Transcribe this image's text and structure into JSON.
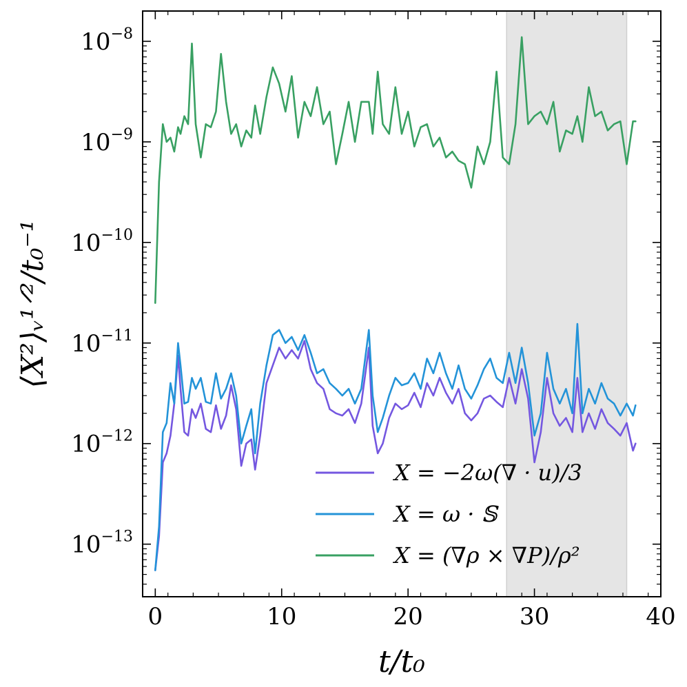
{
  "chart_data": {
    "type": "line",
    "title": "",
    "xlabel": "t/t₀",
    "ylabel": "⟨X²⟩ᵥ¹ᐟ²/t₀⁻¹",
    "xlim": [
      -1,
      40
    ],
    "ylim": [
      3e-14,
      2e-08
    ],
    "yscale": "log",
    "x_ticks": [
      0,
      10,
      20,
      30,
      40
    ],
    "x_tick_labels": [
      "0",
      "10",
      "20",
      "30",
      "40"
    ],
    "y_ticks": [
      1e-13,
      1e-12,
      1e-11,
      1e-10,
      1e-09,
      1e-08
    ],
    "y_tick_labels": [
      {
        "base": "10",
        "exp": "−13"
      },
      {
        "base": "10",
        "exp": "−12"
      },
      {
        "base": "10",
        "exp": "−11"
      },
      {
        "base": "10",
        "exp": "−10"
      },
      {
        "base": "10",
        "exp": "−9"
      },
      {
        "base": "10",
        "exp": "−8"
      }
    ],
    "shaded_region": {
      "x0": 27.8,
      "x1": 37.3,
      "color": "#e5e5e5"
    },
    "legend_position": "lower-right",
    "series": [
      {
        "name": "X = −2ω(∇ · u)/3",
        "color": "#7457e0",
        "x": [
          0.0,
          0.3,
          0.6,
          0.9,
          1.2,
          1.5,
          1.8,
          2.0,
          2.3,
          2.6,
          2.9,
          3.2,
          3.6,
          4.0,
          4.4,
          4.8,
          5.2,
          5.6,
          6.0,
          6.4,
          6.8,
          7.2,
          7.6,
          7.9,
          8.3,
          8.8,
          9.3,
          9.8,
          10.3,
          10.8,
          11.3,
          11.8,
          12.3,
          12.8,
          13.3,
          13.8,
          14.3,
          14.8,
          15.3,
          15.8,
          16.3,
          16.9,
          17.2,
          17.6,
          18.0,
          18.5,
          19.0,
          19.5,
          20.0,
          20.5,
          21.0,
          21.5,
          22.0,
          22.5,
          23.0,
          23.5,
          24.0,
          24.5,
          25.0,
          25.5,
          26.0,
          26.5,
          27.0,
          27.5,
          28.0,
          28.5,
          29.0,
          29.5,
          30.0,
          30.5,
          31.0,
          31.5,
          32.0,
          32.5,
          33.0,
          33.4,
          33.8,
          34.3,
          34.8,
          35.3,
          35.8,
          36.3,
          36.8,
          37.3,
          37.8,
          38.0
        ],
        "y": [
          5.5e-14,
          1.2e-13,
          6.5e-13,
          8e-13,
          1.2e-12,
          2.5e-12,
          7.5e-12,
          3.5e-12,
          1.3e-12,
          1.2e-12,
          2.2e-12,
          1.8e-12,
          2.5e-12,
          1.4e-12,
          1.3e-12,
          2.4e-12,
          1.4e-12,
          1.9e-12,
          3.8e-12,
          2.2e-12,
          6e-13,
          1e-12,
          1.1e-12,
          5.5e-13,
          1.2e-12,
          4e-12,
          6e-12,
          9e-12,
          7e-12,
          8.5e-12,
          7e-12,
          1.05e-11,
          5.5e-12,
          4e-12,
          3.5e-12,
          2.2e-12,
          2e-12,
          1.9e-12,
          2.2e-12,
          1.6e-12,
          2.5e-12,
          9e-12,
          1.5e-12,
          8e-13,
          1e-12,
          1.8e-12,
          2.5e-12,
          2.2e-12,
          2.4e-12,
          3.2e-12,
          2.3e-12,
          4e-12,
          3e-12,
          4.5e-12,
          3.2e-12,
          2.5e-12,
          3.5e-12,
          2e-12,
          1.7e-12,
          2e-12,
          2.8e-12,
          3e-12,
          2.6e-12,
          2.3e-12,
          4.5e-12,
          2.5e-12,
          5.5e-12,
          2.8e-12,
          6.5e-13,
          1.3e-12,
          4.5e-12,
          2e-12,
          1.5e-12,
          1.8e-12,
          1.3e-12,
          4.5e-12,
          1.3e-12,
          2e-12,
          1.4e-12,
          2.2e-12,
          1.6e-12,
          1.4e-12,
          1.2e-12,
          1.6e-12,
          8.5e-13,
          1e-12
        ]
      },
      {
        "name": "X = ω · 𝕊",
        "color": "#2393d8",
        "x": [
          0.0,
          0.3,
          0.6,
          0.9,
          1.2,
          1.5,
          1.8,
          2.0,
          2.3,
          2.6,
          2.9,
          3.2,
          3.6,
          4.0,
          4.4,
          4.8,
          5.2,
          5.6,
          6.0,
          6.4,
          6.8,
          7.2,
          7.6,
          7.9,
          8.3,
          8.8,
          9.3,
          9.8,
          10.3,
          10.8,
          11.3,
          11.8,
          12.3,
          12.8,
          13.3,
          13.8,
          14.3,
          14.8,
          15.3,
          15.8,
          16.3,
          16.9,
          17.2,
          17.6,
          18.0,
          18.5,
          19.0,
          19.5,
          20.0,
          20.5,
          21.0,
          21.5,
          22.0,
          22.5,
          23.0,
          23.5,
          24.0,
          24.5,
          25.0,
          25.5,
          26.0,
          26.5,
          27.0,
          27.5,
          28.0,
          28.5,
          29.0,
          29.5,
          30.0,
          30.5,
          31.0,
          31.5,
          32.0,
          32.5,
          33.0,
          33.4,
          33.8,
          34.3,
          34.8,
          35.3,
          35.8,
          36.3,
          36.8,
          37.3,
          37.8,
          38.0
        ],
        "y": [
          5.5e-14,
          1.5e-13,
          1.3e-12,
          1.6e-12,
          4e-12,
          2.5e-12,
          1e-11,
          6e-12,
          2.5e-12,
          2.6e-12,
          4.5e-12,
          3.5e-12,
          4.5e-12,
          2.6e-12,
          2.5e-12,
          5e-12,
          2.8e-12,
          3.5e-12,
          5e-12,
          3e-12,
          1e-12,
          1.5e-12,
          2.2e-12,
          8e-13,
          2.5e-12,
          6e-12,
          1.2e-11,
          1.35e-11,
          1e-11,
          1.15e-11,
          8.5e-12,
          1.2e-11,
          8e-12,
          5e-12,
          5.5e-12,
          4e-12,
          3.5e-12,
          3e-12,
          3.5e-12,
          2.5e-12,
          3.5e-12,
          1.35e-11,
          3e-12,
          1.3e-12,
          1.8e-12,
          3e-12,
          4.5e-12,
          3.8e-12,
          4e-12,
          5e-12,
          3.5e-12,
          7e-12,
          5e-12,
          8e-12,
          5e-12,
          3.5e-12,
          6e-12,
          3.5e-12,
          2.8e-12,
          3.8e-12,
          5.5e-12,
          7e-12,
          4.5e-12,
          4e-12,
          8e-12,
          4e-12,
          9e-12,
          4e-12,
          1.2e-12,
          2e-12,
          8e-12,
          3.5e-12,
          2.5e-12,
          3.5e-12,
          2e-12,
          1.55e-11,
          2e-12,
          3.5e-12,
          2.5e-12,
          4e-12,
          2.8e-12,
          2.5e-12,
          1.9e-12,
          2.5e-12,
          1.9e-12,
          2.4e-12
        ]
      },
      {
        "name": "X = (∇ρ × ∇P)/ρ²",
        "color": "#38a062",
        "x": [
          0.0,
          0.3,
          0.6,
          0.9,
          1.2,
          1.5,
          1.8,
          2.0,
          2.3,
          2.6,
          2.9,
          3.2,
          3.6,
          4.0,
          4.4,
          4.8,
          5.2,
          5.6,
          6.0,
          6.4,
          6.8,
          7.2,
          7.6,
          7.9,
          8.3,
          8.8,
          9.3,
          9.8,
          10.3,
          10.8,
          11.3,
          11.8,
          12.3,
          12.8,
          13.3,
          13.8,
          14.3,
          14.8,
          15.3,
          15.8,
          16.3,
          16.9,
          17.2,
          17.6,
          18.0,
          18.5,
          19.0,
          19.5,
          20.0,
          20.5,
          21.0,
          21.5,
          22.0,
          22.5,
          23.0,
          23.5,
          24.0,
          24.5,
          25.0,
          25.5,
          26.0,
          26.5,
          27.0,
          27.5,
          28.0,
          28.5,
          29.0,
          29.5,
          30.0,
          30.5,
          31.0,
          31.5,
          32.0,
          32.5,
          33.0,
          33.4,
          33.8,
          34.3,
          34.8,
          35.3,
          35.8,
          36.3,
          36.8,
          37.3,
          37.8,
          38.0
        ],
        "y": [
          2.5e-11,
          4e-10,
          1.5e-09,
          1e-09,
          1.1e-09,
          8e-10,
          1.4e-09,
          1.2e-09,
          1.8e-09,
          1.5e-09,
          9.5e-09,
          1.5e-09,
          7e-10,
          1.5e-09,
          1.4e-09,
          2e-09,
          7.5e-09,
          2.5e-09,
          1.2e-09,
          1.5e-09,
          9e-10,
          1.3e-09,
          1.1e-09,
          2.3e-09,
          1.2e-09,
          2.8e-09,
          5.5e-09,
          3.8e-09,
          2e-09,
          4.5e-09,
          1.1e-09,
          2.5e-09,
          1.8e-09,
          3.5e-09,
          1.5e-09,
          2e-09,
          6e-10,
          1.2e-09,
          2.5e-09,
          1e-09,
          2.5e-09,
          2.5e-09,
          1.2e-09,
          5e-09,
          1.5e-09,
          1.2e-09,
          3.5e-09,
          1.2e-09,
          2e-09,
          9e-10,
          1.4e-09,
          1.5e-09,
          9e-10,
          1.1e-09,
          7e-10,
          8e-10,
          6.5e-10,
          6e-10,
          3.5e-10,
          9e-10,
          6e-10,
          1e-09,
          5e-09,
          7e-10,
          6e-10,
          1.5e-09,
          1.1e-08,
          1.5e-09,
          1.8e-09,
          2e-09,
          1.5e-09,
          2.5e-09,
          8e-10,
          1.3e-09,
          1.2e-09,
          1.8e-09,
          1e-09,
          3.5e-09,
          1.8e-09,
          2e-09,
          1.3e-09,
          1.5e-09,
          1.6e-09,
          6e-10,
          1.6e-09,
          1.6e-09
        ]
      }
    ]
  }
}
